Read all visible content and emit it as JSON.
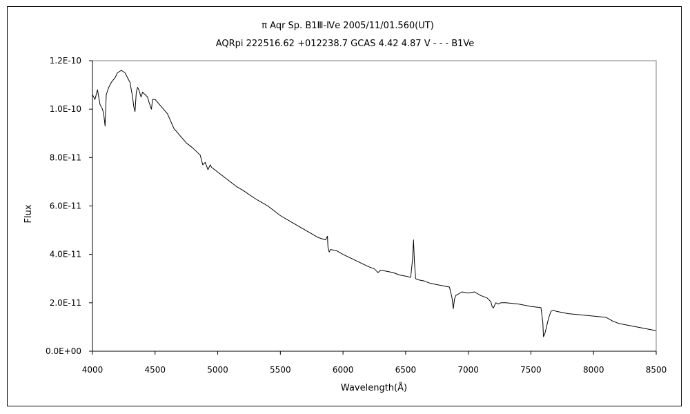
{
  "chart_data": {
    "type": "line",
    "title": "π  Aqr    Sp. B1Ⅲ-Ⅳe    2005/11/01.560(UT)",
    "subtitle": "AQRpi 222516.62 +012238.7 GCAS 4.42 4.87 V - - - B1Ve",
    "xlabel": "Wavelength(Å)",
    "ylabel": "Flux",
    "xlim": [
      4000,
      8500
    ],
    "ylim": [
      0,
      1.2e-10
    ],
    "x_ticks": [
      4000,
      4500,
      5000,
      5500,
      6000,
      6500,
      7000,
      7500,
      8000,
      8500
    ],
    "x_tick_labels": [
      "4000",
      "4500",
      "5000",
      "5500",
      "6000",
      "6500",
      "7000",
      "7500",
      "8000",
      "8500"
    ],
    "y_ticks": [
      0,
      2e-11,
      4e-11,
      6e-11,
      8e-11,
      1e-10,
      1.2e-10
    ],
    "y_tick_labels": [
      "0.0E+00",
      "2.0E-11",
      "4.0E-11",
      "6.0E-11",
      "8.0E-11",
      "1.0E-10",
      "1.2E-10"
    ],
    "grid": false,
    "legend": "none",
    "line_color": "#000000",
    "series": [
      {
        "x": [
          4000,
          4020,
          4040,
          4060,
          4080,
          4090,
          4101,
          4110,
          4130,
          4150,
          4180,
          4200,
          4230,
          4260,
          4280,
          4300,
          4320,
          4330,
          4340,
          4350,
          4360,
          4370,
          4388,
          4400,
          4420,
          4440,
          4450,
          4471,
          4480,
          4500,
          4550,
          4600,
          4650,
          4700,
          4750,
          4800,
          4860,
          4870,
          4880,
          4900,
          4922,
          4940,
          4950,
          5000,
          5050,
          5100,
          5150,
          5200,
          5300,
          5400,
          5500,
          5600,
          5700,
          5800,
          5860,
          5876,
          5880,
          5890,
          5900,
          5950,
          6000,
          6100,
          6200,
          6250,
          6270,
          6280,
          6300,
          6350,
          6400,
          6450,
          6500,
          6540,
          6555,
          6563,
          6570,
          6580,
          6600,
          6650,
          6700,
          6750,
          6800,
          6850,
          6870,
          6880,
          6890,
          6900,
          6950,
          7000,
          7050,
          7100,
          7150,
          7180,
          7190,
          7200,
          7220,
          7240,
          7260,
          7300,
          7400,
          7500,
          7580,
          7595,
          7600,
          7610,
          7620,
          7640,
          7660,
          7680,
          7700,
          7750,
          7800,
          7900,
          8000,
          8100,
          8150,
          8200,
          8300,
          8400,
          8500
        ],
        "y": [
          1.06e-10,
          1.04e-10,
          1.08e-10,
          1.02e-10,
          1e-10,
          9.8e-11,
          9.3e-11,
          1.06e-10,
          1.09e-10,
          1.11e-10,
          1.13e-10,
          1.15e-10,
          1.16e-10,
          1.15e-10,
          1.13e-10,
          1.11e-10,
          1.05e-10,
          1.01e-10,
          9.9e-11,
          1.07e-10,
          1.09e-10,
          1.08e-10,
          1.05e-10,
          1.07e-10,
          1.06e-10,
          1.05e-10,
          1.03e-10,
          1e-10,
          1.04e-10,
          1.04e-10,
          1.01e-10,
          9.8e-11,
          9.2e-11,
          8.9e-11,
          8.6e-11,
          8.4e-11,
          8.1e-11,
          7.9e-11,
          7.7e-11,
          7.8e-11,
          7.5e-11,
          7.7e-11,
          7.6e-11,
          7.4e-11,
          7.2e-11,
          7e-11,
          6.8e-11,
          6.65e-11,
          6.3e-11,
          6e-11,
          5.6e-11,
          5.3e-11,
          5e-11,
          4.7e-11,
          4.6e-11,
          4.75e-11,
          4.3e-11,
          4.1e-11,
          4.2e-11,
          4.15e-11,
          4e-11,
          3.75e-11,
          3.5e-11,
          3.4e-11,
          3.3e-11,
          3.25e-11,
          3.35e-11,
          3.3e-11,
          3.25e-11,
          3.15e-11,
          3.1e-11,
          3.05e-11,
          3.8e-11,
          4.6e-11,
          3.7e-11,
          3e-11,
          2.95e-11,
          2.9e-11,
          2.8e-11,
          2.75e-11,
          2.7e-11,
          2.65e-11,
          2.2e-11,
          1.75e-11,
          2.15e-11,
          2.3e-11,
          2.45e-11,
          2.4e-11,
          2.45e-11,
          2.3e-11,
          2.2e-11,
          2.05e-11,
          1.85e-11,
          1.78e-11,
          2e-11,
          1.95e-11,
          2e-11,
          2e-11,
          1.95e-11,
          1.85e-11,
          1.8e-11,
          1.2e-11,
          6e-12,
          7e-12,
          9e-12,
          1.35e-11,
          1.65e-11,
          1.7e-11,
          1.65e-11,
          1.6e-11,
          1.55e-11,
          1.5e-11,
          1.45e-11,
          1.4e-11,
          1.25e-11,
          1.15e-11,
          1.05e-11,
          9.5e-12,
          8.5e-12
        ]
      }
    ]
  }
}
